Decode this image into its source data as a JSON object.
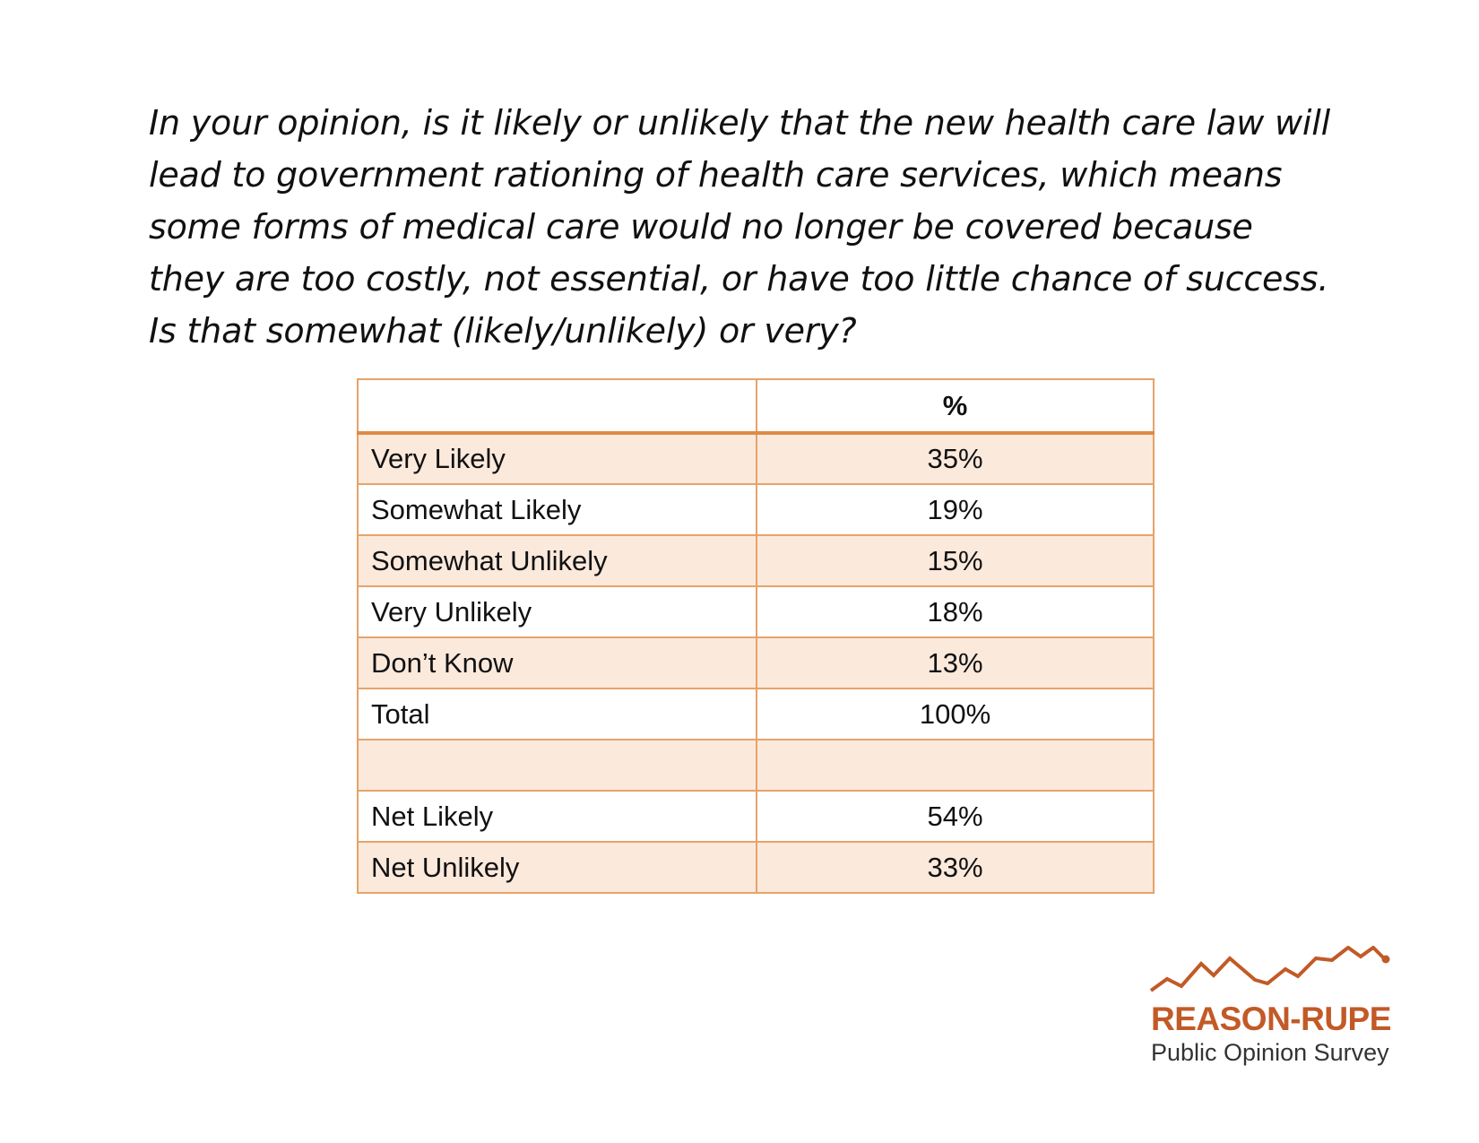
{
  "question": "In your opinion, is it likely or unlikely that the new health care law will lead to government rationing of health care services, which means some forms of medical care would no longer be covered because they are too costly, not essential, or have too little chance of success. Is that somewhat (likely/unlikely) or very?",
  "chart_data": {
    "type": "table",
    "columns": [
      "",
      "%"
    ],
    "rows": [
      {
        "label": "Very Likely",
        "value": "35%"
      },
      {
        "label": "Somewhat Likely",
        "value": "19%"
      },
      {
        "label": "Somewhat Unlikely",
        "value": "15%"
      },
      {
        "label": "Very Unlikely",
        "value": "18%"
      },
      {
        "label": "Don’t Know",
        "value": "13%"
      },
      {
        "label": "Total",
        "value": "100%"
      },
      {
        "label": "",
        "value": ""
      },
      {
        "label": "Net Likely",
        "value": "54%"
      },
      {
        "label": "Net Unlikely",
        "value": "33%"
      }
    ]
  },
  "logo": {
    "name": "REASON-RUPE",
    "subtitle": "Public Opinion Survey",
    "color": "#c25a27",
    "icon": "mountain-line-icon"
  },
  "colors": {
    "border": "#e6a36a",
    "header_rule": "#e08a45",
    "band": "#fbe9dc"
  }
}
